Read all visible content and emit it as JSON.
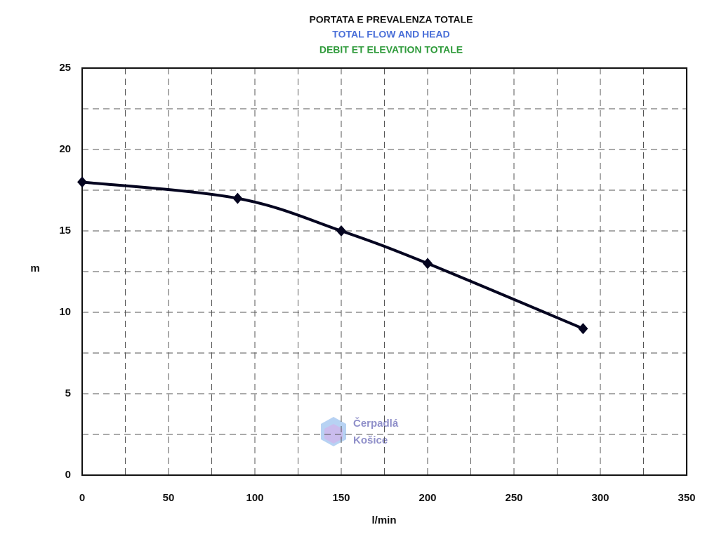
{
  "chart_data": {
    "type": "line",
    "title": "PORTATA E PREVALENZA TOTALE",
    "subtitles": [
      "TOTAL FLOW AND HEAD",
      "DEBIT ET ELEVATION TOTALE"
    ],
    "subtitle_colors": [
      "#4a6fd8",
      "#2e9a3a"
    ],
    "xlabel": "l/min",
    "ylabel": "m",
    "x": [
      0,
      90,
      150,
      200,
      290
    ],
    "series": [
      {
        "color": "#050520",
        "values": [
          18,
          17,
          15,
          13,
          9
        ]
      }
    ],
    "xlim": [
      0,
      350
    ],
    "xticks": [
      0,
      50,
      100,
      150,
      200,
      250,
      300,
      350
    ],
    "ylim": [
      0,
      25
    ],
    "yticks": [
      0,
      5,
      10,
      15,
      20,
      25
    ],
    "grid": true,
    "smooth": true,
    "watermark": [
      "Čerpadlá",
      "Košice"
    ]
  }
}
